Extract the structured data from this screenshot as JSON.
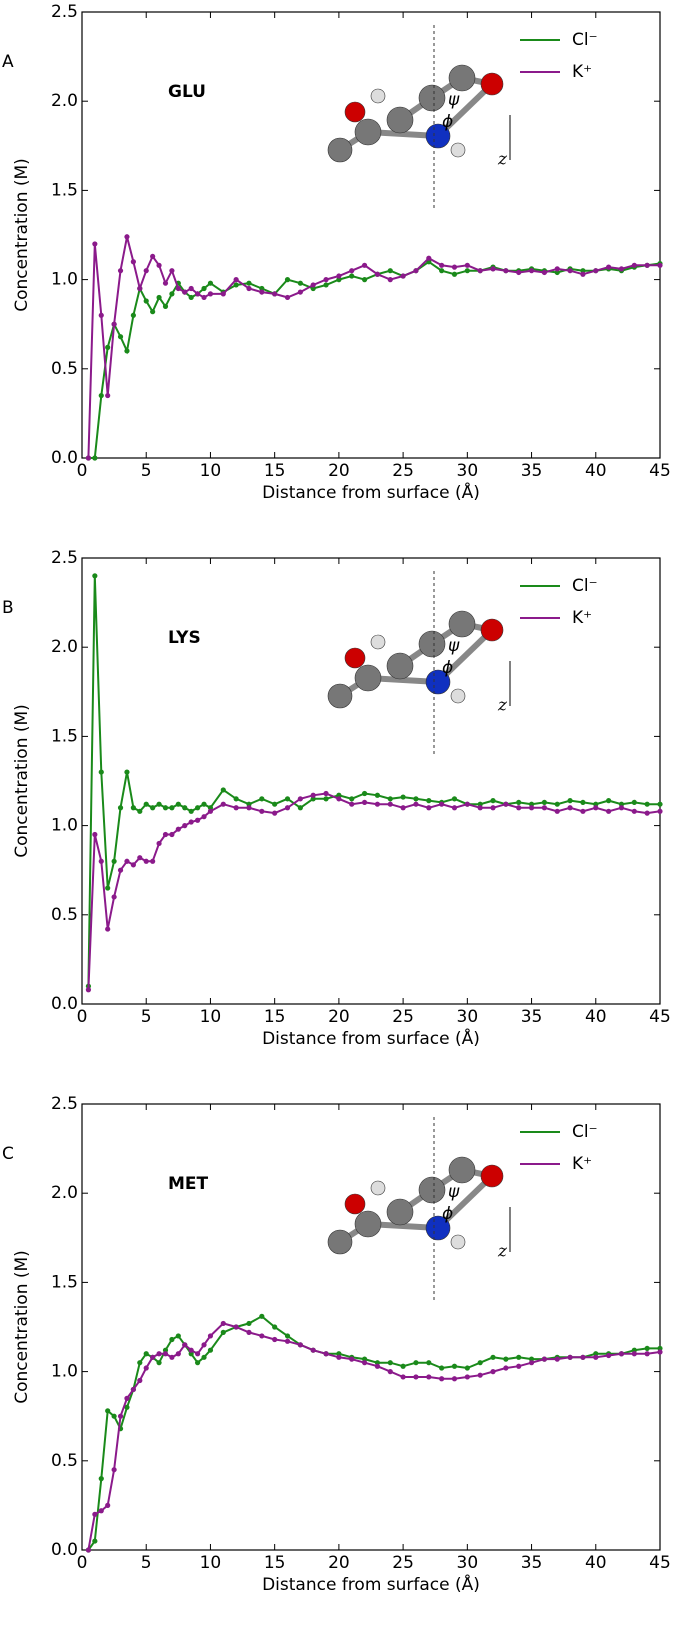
{
  "chart_data": [
    {
      "type": "line",
      "panel": "A",
      "label": "GLU",
      "xlabel": "Distance from surface (Å)",
      "ylabel": "Concentration (M)",
      "annotations": [
        "ψ",
        "ϕ",
        "z"
      ],
      "xlim": [
        0,
        45
      ],
      "ylim": [
        0,
        2.5
      ],
      "xticks": [
        0,
        5,
        10,
        15,
        20,
        25,
        30,
        35,
        40,
        45
      ],
      "yticks": [
        {
          "value": 0,
          "label": "0.0"
        },
        0.5,
        {
          "value": 1,
          "label": "1.0"
        },
        1.5,
        {
          "value": 2,
          "label": "2.0"
        },
        2.5
      ],
      "legend": "upper right",
      "x": [
        0.5,
        1,
        1.5,
        2,
        2.5,
        3,
        3.5,
        4,
        4.5,
        5,
        5.5,
        6,
        6.5,
        7,
        7.5,
        8,
        8.5,
        9,
        9.5,
        10,
        11,
        12,
        13,
        14,
        15,
        16,
        17,
        18,
        19,
        20,
        21,
        22,
        23,
        24,
        25,
        26,
        27,
        28,
        29,
        30,
        31,
        32,
        33,
        34,
        35,
        36,
        37,
        38,
        39,
        40,
        41,
        42,
        43,
        44,
        45
      ],
      "series": [
        {
          "name": "Cl⁻",
          "color": "#1a8a1a",
          "values": [
            0,
            0,
            0.35,
            0.62,
            0.75,
            0.68,
            0.6,
            0.8,
            0.95,
            0.88,
            0.82,
            0.9,
            0.85,
            0.92,
            0.98,
            0.93,
            0.9,
            0.92,
            0.95,
            0.98,
            0.93,
            0.97,
            0.98,
            0.95,
            0.92,
            1.0,
            0.98,
            0.95,
            0.97,
            1.0,
            1.02,
            1.0,
            1.03,
            1.05,
            1.02,
            1.05,
            1.1,
            1.05,
            1.03,
            1.05,
            1.05,
            1.07,
            1.05,
            1.05,
            1.06,
            1.05,
            1.04,
            1.06,
            1.05,
            1.05,
            1.06,
            1.05,
            1.07,
            1.08,
            1.09
          ]
        },
        {
          "name": "K⁺",
          "color": "#8b1a8b",
          "values": [
            0,
            1.2,
            0.8,
            0.35,
            0.75,
            1.05,
            1.24,
            1.1,
            0.95,
            1.05,
            1.13,
            1.08,
            0.98,
            1.05,
            0.95,
            0.93,
            0.95,
            0.92,
            0.9,
            0.92,
            0.92,
            1.0,
            0.95,
            0.93,
            0.92,
            0.9,
            0.93,
            0.97,
            1.0,
            1.02,
            1.05,
            1.08,
            1.03,
            1.0,
            1.02,
            1.05,
            1.12,
            1.08,
            1.07,
            1.08,
            1.05,
            1.06,
            1.05,
            1.04,
            1.05,
            1.04,
            1.06,
            1.05,
            1.03,
            1.05,
            1.07,
            1.06,
            1.08,
            1.08,
            1.08
          ]
        }
      ]
    },
    {
      "type": "line",
      "panel": "B",
      "label": "LYS",
      "xlabel": "Distance from surface (Å)",
      "ylabel": "Concentration (M)",
      "annotations": [
        "ψ",
        "ϕ",
        "z"
      ],
      "xlim": [
        0,
        45
      ],
      "ylim": [
        0,
        2.5
      ],
      "xticks": [
        0,
        5,
        10,
        15,
        20,
        25,
        30,
        35,
        40,
        45
      ],
      "yticks": [
        {
          "value": 0,
          "label": "0.0"
        },
        0.5,
        {
          "value": 1,
          "label": "1.0"
        },
        1.5,
        {
          "value": 2,
          "label": "2.0"
        },
        2.5
      ],
      "legend": "upper right",
      "x": [
        0.5,
        1,
        1.5,
        2,
        2.5,
        3,
        3.5,
        4,
        4.5,
        5,
        5.5,
        6,
        6.5,
        7,
        7.5,
        8,
        8.5,
        9,
        9.5,
        10,
        11,
        12,
        13,
        14,
        15,
        16,
        17,
        18,
        19,
        20,
        21,
        22,
        23,
        24,
        25,
        26,
        27,
        28,
        29,
        30,
        31,
        32,
        33,
        34,
        35,
        36,
        37,
        38,
        39,
        40,
        41,
        42,
        43,
        44,
        45
      ],
      "series": [
        {
          "name": "Cl⁻",
          "color": "#1a8a1a",
          "values": [
            0.1,
            2.4,
            1.3,
            0.65,
            0.8,
            1.1,
            1.3,
            1.1,
            1.08,
            1.12,
            1.1,
            1.12,
            1.1,
            1.1,
            1.12,
            1.1,
            1.08,
            1.1,
            1.12,
            1.1,
            1.2,
            1.15,
            1.12,
            1.15,
            1.12,
            1.15,
            1.1,
            1.15,
            1.15,
            1.17,
            1.15,
            1.18,
            1.17,
            1.15,
            1.16,
            1.15,
            1.14,
            1.13,
            1.15,
            1.12,
            1.12,
            1.14,
            1.12,
            1.13,
            1.12,
            1.13,
            1.12,
            1.14,
            1.13,
            1.12,
            1.14,
            1.12,
            1.13,
            1.12,
            1.12
          ]
        },
        {
          "name": "K⁺",
          "color": "#8b1a8b",
          "values": [
            0.08,
            0.95,
            0.8,
            0.42,
            0.6,
            0.75,
            0.8,
            0.78,
            0.82,
            0.8,
            0.8,
            0.9,
            0.95,
            0.95,
            0.98,
            1.0,
            1.02,
            1.03,
            1.05,
            1.08,
            1.12,
            1.1,
            1.1,
            1.08,
            1.07,
            1.1,
            1.15,
            1.17,
            1.18,
            1.15,
            1.12,
            1.13,
            1.12,
            1.12,
            1.1,
            1.12,
            1.1,
            1.12,
            1.1,
            1.12,
            1.1,
            1.1,
            1.12,
            1.1,
            1.1,
            1.1,
            1.08,
            1.1,
            1.08,
            1.1,
            1.08,
            1.1,
            1.08,
            1.07,
            1.08
          ]
        }
      ]
    },
    {
      "type": "line",
      "panel": "C",
      "label": "MET",
      "xlabel": "Distance from surface (Å)",
      "ylabel": "Concentration (M)",
      "annotations": [
        "ψ",
        "ϕ",
        "z"
      ],
      "xlim": [
        0,
        45
      ],
      "ylim": [
        0,
        2.5
      ],
      "xticks": [
        0,
        5,
        10,
        15,
        20,
        25,
        30,
        35,
        40,
        45
      ],
      "yticks": [
        {
          "value": 0,
          "label": "0.0"
        },
        0.5,
        {
          "value": 1,
          "label": "1.0"
        },
        1.5,
        {
          "value": 2,
          "label": "2.0"
        },
        2.5
      ],
      "legend": "upper right",
      "x": [
        0.5,
        1,
        1.5,
        2,
        2.5,
        3,
        3.5,
        4,
        4.5,
        5,
        5.5,
        6,
        6.5,
        7,
        7.5,
        8,
        8.5,
        9,
        9.5,
        10,
        11,
        12,
        13,
        14,
        15,
        16,
        17,
        18,
        19,
        20,
        21,
        22,
        23,
        24,
        25,
        26,
        27,
        28,
        29,
        30,
        31,
        32,
        33,
        34,
        35,
        36,
        37,
        38,
        39,
        40,
        41,
        42,
        43,
        44,
        45
      ],
      "series": [
        {
          "name": "Cl⁻",
          "color": "#1a8a1a",
          "values": [
            0,
            0.05,
            0.4,
            0.78,
            0.75,
            0.68,
            0.8,
            0.9,
            1.05,
            1.1,
            1.08,
            1.05,
            1.12,
            1.18,
            1.2,
            1.15,
            1.1,
            1.05,
            1.08,
            1.12,
            1.22,
            1.25,
            1.27,
            1.31,
            1.25,
            1.2,
            1.15,
            1.12,
            1.1,
            1.1,
            1.08,
            1.07,
            1.05,
            1.05,
            1.03,
            1.05,
            1.05,
            1.02,
            1.03,
            1.02,
            1.05,
            1.08,
            1.07,
            1.08,
            1.07,
            1.07,
            1.08,
            1.08,
            1.08,
            1.1,
            1.1,
            1.1,
            1.12,
            1.13,
            1.13
          ]
        },
        {
          "name": "K⁺",
          "color": "#8b1a8b",
          "values": [
            0,
            0.2,
            0.22,
            0.25,
            0.45,
            0.75,
            0.85,
            0.9,
            0.95,
            1.02,
            1.08,
            1.1,
            1.1,
            1.08,
            1.1,
            1.15,
            1.12,
            1.1,
            1.15,
            1.2,
            1.27,
            1.25,
            1.22,
            1.2,
            1.18,
            1.17,
            1.15,
            1.12,
            1.1,
            1.08,
            1.07,
            1.05,
            1.03,
            1.0,
            0.97,
            0.97,
            0.97,
            0.96,
            0.96,
            0.97,
            0.98,
            1.0,
            1.02,
            1.03,
            1.05,
            1.07,
            1.07,
            1.08,
            1.08,
            1.08,
            1.09,
            1.1,
            1.1,
            1.1,
            1.11
          ]
        }
      ]
    }
  ]
}
